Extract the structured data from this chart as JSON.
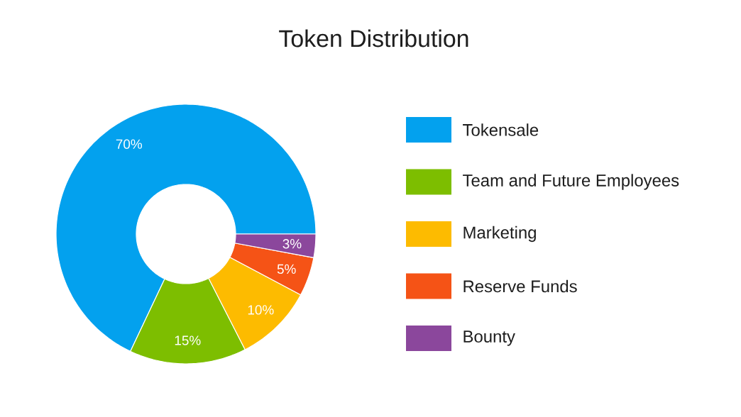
{
  "chart_data": {
    "type": "donut",
    "title": "Token Distribution",
    "categories": [
      "Tokensale",
      "Team and Future Employees",
      "Marketing",
      "Reserve Funds",
      "Bounty"
    ],
    "values": [
      70,
      15,
      10,
      5,
      3
    ],
    "colors": [
      "#03a1ee",
      "#7dbe00",
      "#fdbb00",
      "#f55316",
      "#8b479c"
    ],
    "value_labels": [
      "70%",
      "15%",
      "10%",
      "5%",
      "3%"
    ],
    "legend": "right"
  }
}
